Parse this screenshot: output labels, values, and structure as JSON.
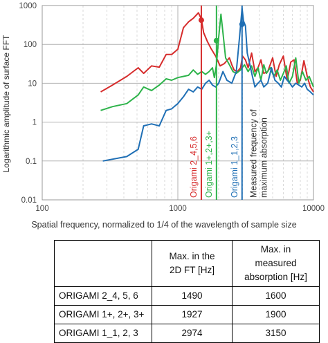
{
  "chart_data": {
    "type": "line",
    "ylabel": "Logarithmic amplitude of surface FFT",
    "xlabel": "Spatial frequency, normalized to 1/4 of the wavelength of sample size",
    "xscale": "log",
    "yscale": "log",
    "xlim": [
      100,
      10000
    ],
    "ylim": [
      0.01,
      1000
    ],
    "x_tick_labels": [
      "100",
      "1000",
      "10000"
    ],
    "y_tick_labels": [
      "1000",
      "100",
      "10",
      "1",
      "0.1",
      "0.01"
    ],
    "grid": true,
    "colors": {
      "red": "#d62b2b",
      "green": "#2db34a",
      "blue": "#1f6fb5",
      "black": "#333333"
    },
    "series": [
      {
        "color": "#d62b2b",
        "points": [
          [
            270,
            6
          ],
          [
            330,
            9
          ],
          [
            420,
            15
          ],
          [
            510,
            25
          ],
          [
            560,
            18
          ],
          [
            640,
            28
          ],
          [
            730,
            26
          ],
          [
            820,
            55
          ],
          [
            900,
            55
          ],
          [
            1000,
            75
          ],
          [
            1100,
            270
          ],
          [
            1200,
            380
          ],
          [
            1300,
            470
          ],
          [
            1420,
            650
          ],
          [
            1490,
            450
          ],
          [
            1550,
            200
          ],
          [
            1650,
            120
          ],
          [
            1750,
            80
          ],
          [
            1900,
            50
          ],
          [
            2050,
            28
          ],
          [
            2200,
            32
          ],
          [
            2400,
            45
          ],
          [
            2500,
            30
          ],
          [
            2600,
            22
          ],
          [
            2750,
            20
          ],
          [
            2900,
            25
          ],
          [
            3000,
            50
          ],
          [
            3150,
            40
          ],
          [
            3300,
            25
          ],
          [
            3500,
            60
          ],
          [
            3700,
            20
          ],
          [
            3900,
            25
          ],
          [
            4100,
            40
          ],
          [
            4300,
            18
          ],
          [
            4600,
            20
          ],
          [
            5000,
            45
          ],
          [
            5300,
            15
          ],
          [
            5600,
            30
          ],
          [
            6000,
            50
          ],
          [
            6400,
            12
          ],
          [
            6800,
            35
          ],
          [
            7200,
            40
          ],
          [
            7600,
            10
          ],
          [
            8000,
            12
          ],
          [
            8500,
            38
          ],
          [
            9000,
            15
          ],
          [
            9500,
            8
          ],
          [
            10000,
            6
          ]
        ]
      },
      {
        "color": "#2db34a",
        "points": [
          [
            270,
            2
          ],
          [
            330,
            2.5
          ],
          [
            420,
            3
          ],
          [
            510,
            5
          ],
          [
            560,
            8
          ],
          [
            640,
            6.5
          ],
          [
            730,
            9
          ],
          [
            820,
            13
          ],
          [
            900,
            12
          ],
          [
            1000,
            14
          ],
          [
            1100,
            15
          ],
          [
            1200,
            16
          ],
          [
            1300,
            22
          ],
          [
            1400,
            17
          ],
          [
            1500,
            20
          ],
          [
            1600,
            17
          ],
          [
            1700,
            20
          ],
          [
            1800,
            25
          ],
          [
            1860,
            14
          ],
          [
            1927,
            30
          ],
          [
            2000,
            150
          ],
          [
            2080,
            600
          ],
          [
            2150,
            200
          ],
          [
            2250,
            45
          ],
          [
            2400,
            30
          ],
          [
            2550,
            20
          ],
          [
            2700,
            18
          ],
          [
            2900,
            22
          ],
          [
            3100,
            30
          ],
          [
            3300,
            20
          ],
          [
            3500,
            28
          ],
          [
            3700,
            15
          ],
          [
            3900,
            25
          ],
          [
            4100,
            12
          ],
          [
            4300,
            30
          ],
          [
            4500,
            18
          ],
          [
            4800,
            25
          ],
          [
            5100,
            15
          ],
          [
            5400,
            22
          ],
          [
            5700,
            12
          ],
          [
            6000,
            18
          ],
          [
            6300,
            28
          ],
          [
            6600,
            10
          ],
          [
            7000,
            15
          ],
          [
            7400,
            45
          ],
          [
            7800,
            10
          ],
          [
            8300,
            20
          ],
          [
            8800,
            12
          ],
          [
            9300,
            15
          ],
          [
            10000,
            8
          ]
        ]
      },
      {
        "color": "#1f6fb5",
        "points": [
          [
            280,
            0.1
          ],
          [
            420,
            0.13
          ],
          [
            510,
            0.2
          ],
          [
            560,
            0.8
          ],
          [
            640,
            0.9
          ],
          [
            730,
            0.8
          ],
          [
            820,
            2
          ],
          [
            900,
            2.2
          ],
          [
            1000,
            3
          ],
          [
            1100,
            4.5
          ],
          [
            1200,
            7
          ],
          [
            1300,
            6
          ],
          [
            1400,
            8
          ],
          [
            1500,
            7
          ],
          [
            1600,
            10
          ],
          [
            1700,
            12
          ],
          [
            1800,
            9
          ],
          [
            1900,
            8
          ],
          [
            2000,
            10
          ],
          [
            2150,
            20
          ],
          [
            2300,
            12
          ],
          [
            2500,
            10
          ],
          [
            2700,
            20
          ],
          [
            2850,
            150
          ],
          [
            2974,
            850
          ],
          [
            3050,
            400
          ],
          [
            3150,
            300
          ],
          [
            3250,
            60
          ],
          [
            3400,
            30
          ],
          [
            3550,
            15
          ],
          [
            3700,
            8
          ],
          [
            3900,
            10
          ],
          [
            4100,
            12
          ],
          [
            4300,
            8
          ],
          [
            4600,
            10
          ],
          [
            4900,
            25
          ],
          [
            5200,
            12
          ],
          [
            5500,
            10
          ],
          [
            5800,
            8
          ],
          [
            6100,
            15
          ],
          [
            6400,
            12
          ],
          [
            6700,
            10
          ],
          [
            7000,
            8
          ],
          [
            7400,
            10
          ],
          [
            7800,
            9
          ],
          [
            8200,
            8
          ],
          [
            8600,
            10
          ],
          [
            9000,
            7
          ],
          [
            9500,
            6
          ],
          [
            10000,
            5
          ]
        ]
      }
    ],
    "peak_markers": [
      {
        "x": 1490,
        "y": 420,
        "color": "#d62b2b"
      },
      {
        "x": 1927,
        "y": 125,
        "color": "#2db34a"
      },
      {
        "x": 2974,
        "y": 330,
        "color": "#1f6fb5"
      }
    ],
    "vertical_lines": [
      {
        "x": 1490,
        "color": "#d62b2b",
        "label": "Origami 2_4,5,6"
      },
      {
        "x": 1927,
        "color": "#2db34a",
        "label": "Origami 1+,2+,3+"
      },
      {
        "x": 2974,
        "color": "#1f6fb5",
        "label": "Origami 1_1,2,3"
      }
    ],
    "black_label": [
      "Measured frequency of",
      "maximum absorption"
    ]
  },
  "table": {
    "header_col2": [
      "Max. in the",
      "2D FT [Hz]"
    ],
    "header_col3": [
      "Max. in",
      "measured",
      "absorption [Hz]"
    ],
    "rows": [
      {
        "label": "ORIGAMI 2_4, 5, 6",
        "ft": "1490",
        "measured": "1600"
      },
      {
        "label": "ORIGAMI 1+, 2+, 3+",
        "ft": "1927",
        "measured": "1900"
      },
      {
        "label": "ORIGAMI 1_1, 2, 3",
        "ft": "2974",
        "measured": "3150"
      }
    ]
  }
}
